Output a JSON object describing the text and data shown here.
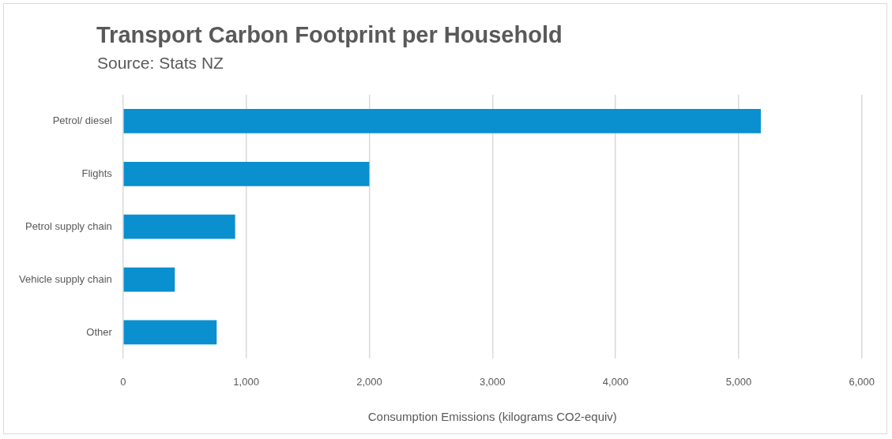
{
  "chart_data": {
    "type": "bar",
    "orientation": "horizontal",
    "title": "Transport Carbon Footprint per Household",
    "subtitle": "Source: Stats NZ",
    "xlabel": "Consumption Emissions (kilograms CO2-equiv)",
    "categories": [
      "Petrol/ diesel",
      "Flights",
      "Petrol supply chain",
      "Vehicle supply chain",
      "Other"
    ],
    "values": [
      5180,
      2000,
      910,
      420,
      760
    ],
    "color": "#0a8fcf",
    "xlim": [
      0,
      6000
    ],
    "xticks": [
      0,
      {
        "value": 1000,
        "label": "1,000"
      },
      {
        "value": 2000,
        "label": "2,000"
      },
      {
        "value": 3000,
        "label": "3,000"
      },
      {
        "value": 4000,
        "label": "4,000"
      },
      {
        "value": 5000,
        "label": "5,000"
      },
      {
        "value": 6000,
        "label": "6,000"
      }
    ],
    "grid": "x",
    "legend": false
  }
}
